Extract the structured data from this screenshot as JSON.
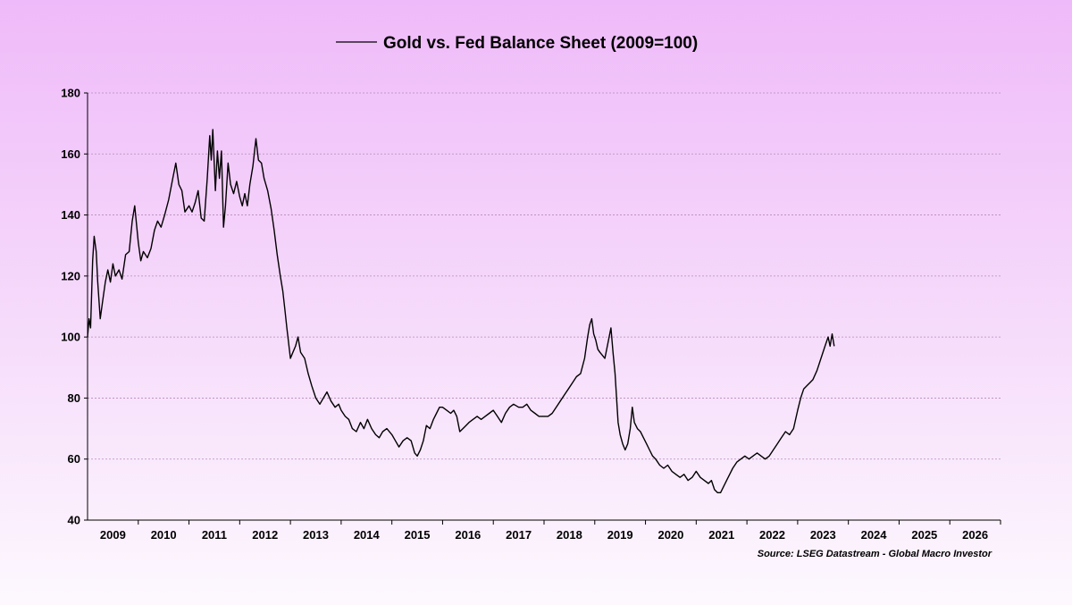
{
  "chart_data": {
    "type": "line",
    "title": "",
    "xlabel": "",
    "ylabel": "",
    "ylim": [
      40,
      180
    ],
    "yticks": [
      40,
      60,
      80,
      100,
      120,
      140,
      160,
      180
    ],
    "xlim": [
      2009.0,
      2027.0
    ],
    "xtick_labels": [
      "2009",
      "2010",
      "2011",
      "2012",
      "2013",
      "2014",
      "2015",
      "2016",
      "2017",
      "2018",
      "2019",
      "2020",
      "2021",
      "2022",
      "2023",
      "2024",
      "2025",
      "2026"
    ],
    "grid": "horizontal-dashed",
    "legend_position": "top-center",
    "line_color": "#000000",
    "source_note": "Source: LSEG Datastream - Global Macro Investor",
    "series": [
      {
        "name": "Gold vs. Fed Balance Sheet (2009=100)",
        "points": [
          [
            2009.0,
            100
          ],
          [
            2009.03,
            106
          ],
          [
            2009.06,
            103
          ],
          [
            2009.1,
            125
          ],
          [
            2009.13,
            133
          ],
          [
            2009.17,
            128
          ],
          [
            2009.2,
            118
          ],
          [
            2009.25,
            106
          ],
          [
            2009.3,
            112
          ],
          [
            2009.35,
            118
          ],
          [
            2009.4,
            122
          ],
          [
            2009.45,
            118
          ],
          [
            2009.5,
            124
          ],
          [
            2009.55,
            120
          ],
          [
            2009.62,
            122
          ],
          [
            2009.68,
            119
          ],
          [
            2009.75,
            127
          ],
          [
            2009.82,
            128
          ],
          [
            2009.88,
            138
          ],
          [
            2009.93,
            143
          ],
          [
            2010.0,
            131
          ],
          [
            2010.05,
            125
          ],
          [
            2010.1,
            128
          ],
          [
            2010.18,
            126
          ],
          [
            2010.25,
            129
          ],
          [
            2010.32,
            135
          ],
          [
            2010.38,
            138
          ],
          [
            2010.45,
            136
          ],
          [
            2010.52,
            140
          ],
          [
            2010.6,
            145
          ],
          [
            2010.68,
            152
          ],
          [
            2010.74,
            157
          ],
          [
            2010.8,
            150
          ],
          [
            2010.86,
            148
          ],
          [
            2010.92,
            141
          ],
          [
            2011.0,
            143
          ],
          [
            2011.06,
            141
          ],
          [
            2011.12,
            144
          ],
          [
            2011.18,
            148
          ],
          [
            2011.24,
            139
          ],
          [
            2011.3,
            138
          ],
          [
            2011.36,
            152
          ],
          [
            2011.41,
            166
          ],
          [
            2011.44,
            158
          ],
          [
            2011.47,
            168
          ],
          [
            2011.52,
            148
          ],
          [
            2011.56,
            161
          ],
          [
            2011.6,
            152
          ],
          [
            2011.64,
            161
          ],
          [
            2011.68,
            136
          ],
          [
            2011.72,
            143
          ],
          [
            2011.77,
            157
          ],
          [
            2011.82,
            150
          ],
          [
            2011.88,
            147
          ],
          [
            2011.94,
            151
          ],
          [
            2012.0,
            146
          ],
          [
            2012.05,
            143
          ],
          [
            2012.1,
            147
          ],
          [
            2012.15,
            143
          ],
          [
            2012.2,
            150
          ],
          [
            2012.26,
            156
          ],
          [
            2012.32,
            165
          ],
          [
            2012.37,
            158
          ],
          [
            2012.43,
            157
          ],
          [
            2012.48,
            152
          ],
          [
            2012.55,
            148
          ],
          [
            2012.62,
            142
          ],
          [
            2012.68,
            135
          ],
          [
            2012.74,
            127
          ],
          [
            2012.8,
            120
          ],
          [
            2012.85,
            115
          ],
          [
            2012.89,
            109
          ],
          [
            2012.93,
            103
          ],
          [
            2013.0,
            93
          ],
          [
            2013.05,
            95
          ],
          [
            2013.1,
            97
          ],
          [
            2013.15,
            100
          ],
          [
            2013.2,
            95
          ],
          [
            2013.28,
            93
          ],
          [
            2013.35,
            88
          ],
          [
            2013.42,
            84
          ],
          [
            2013.5,
            80
          ],
          [
            2013.58,
            78
          ],
          [
            2013.65,
            80
          ],
          [
            2013.72,
            82
          ],
          [
            2013.8,
            79
          ],
          [
            2013.88,
            77
          ],
          [
            2013.95,
            78
          ],
          [
            2014.0,
            76
          ],
          [
            2014.08,
            74
          ],
          [
            2014.15,
            73
          ],
          [
            2014.22,
            70
          ],
          [
            2014.3,
            69
          ],
          [
            2014.38,
            72
          ],
          [
            2014.45,
            70
          ],
          [
            2014.52,
            73
          ],
          [
            2014.6,
            70
          ],
          [
            2014.68,
            68
          ],
          [
            2014.75,
            67
          ],
          [
            2014.82,
            69
          ],
          [
            2014.9,
            70
          ],
          [
            2015.0,
            68
          ],
          [
            2015.07,
            66
          ],
          [
            2015.14,
            64
          ],
          [
            2015.22,
            66
          ],
          [
            2015.3,
            67
          ],
          [
            2015.38,
            66
          ],
          [
            2015.45,
            62
          ],
          [
            2015.5,
            61
          ],
          [
            2015.56,
            63
          ],
          [
            2015.62,
            66
          ],
          [
            2015.68,
            71
          ],
          [
            2015.75,
            70
          ],
          [
            2015.82,
            73
          ],
          [
            2015.88,
            75
          ],
          [
            2015.94,
            77
          ],
          [
            2016.0,
            77
          ],
          [
            2016.08,
            76
          ],
          [
            2016.16,
            75
          ],
          [
            2016.22,
            76
          ],
          [
            2016.28,
            74
          ],
          [
            2016.34,
            69
          ],
          [
            2016.4,
            70
          ],
          [
            2016.46,
            71
          ],
          [
            2016.52,
            72
          ],
          [
            2016.6,
            73
          ],
          [
            2016.68,
            74
          ],
          [
            2016.76,
            73
          ],
          [
            2016.84,
            74
          ],
          [
            2016.92,
            75
          ],
          [
            2017.0,
            76
          ],
          [
            2017.08,
            74
          ],
          [
            2017.16,
            72
          ],
          [
            2017.24,
            75
          ],
          [
            2017.32,
            77
          ],
          [
            2017.4,
            78
          ],
          [
            2017.5,
            77
          ],
          [
            2017.58,
            77
          ],
          [
            2017.66,
            78
          ],
          [
            2017.74,
            76
          ],
          [
            2017.82,
            75
          ],
          [
            2017.9,
            74
          ],
          [
            2018.0,
            74
          ],
          [
            2018.08,
            74
          ],
          [
            2018.16,
            75
          ],
          [
            2018.24,
            77
          ],
          [
            2018.32,
            79
          ],
          [
            2018.4,
            81
          ],
          [
            2018.48,
            83
          ],
          [
            2018.56,
            85
          ],
          [
            2018.64,
            87
          ],
          [
            2018.72,
            88
          ],
          [
            2018.8,
            93
          ],
          [
            2018.86,
            100
          ],
          [
            2018.9,
            104
          ],
          [
            2018.94,
            106
          ],
          [
            2018.98,
            101
          ],
          [
            2019.02,
            99
          ],
          [
            2019.06,
            96
          ],
          [
            2019.1,
            95
          ],
          [
            2019.15,
            94
          ],
          [
            2019.2,
            93
          ],
          [
            2019.26,
            98
          ],
          [
            2019.32,
            103
          ],
          [
            2019.36,
            95
          ],
          [
            2019.4,
            88
          ],
          [
            2019.43,
            80
          ],
          [
            2019.46,
            72
          ],
          [
            2019.5,
            68
          ],
          [
            2019.55,
            65
          ],
          [
            2019.6,
            63
          ],
          [
            2019.65,
            65
          ],
          [
            2019.7,
            70
          ],
          [
            2019.74,
            77
          ],
          [
            2019.78,
            72
          ],
          [
            2019.84,
            70
          ],
          [
            2019.9,
            69
          ],
          [
            2019.96,
            67
          ],
          [
            2020.02,
            65
          ],
          [
            2020.08,
            63
          ],
          [
            2020.14,
            61
          ],
          [
            2020.2,
            60
          ],
          [
            2020.28,
            58
          ],
          [
            2020.36,
            57
          ],
          [
            2020.44,
            58
          ],
          [
            2020.52,
            56
          ],
          [
            2020.6,
            55
          ],
          [
            2020.68,
            54
          ],
          [
            2020.76,
            55
          ],
          [
            2020.84,
            53
          ],
          [
            2020.92,
            54
          ],
          [
            2021.0,
            56
          ],
          [
            2021.08,
            54
          ],
          [
            2021.16,
            53
          ],
          [
            2021.24,
            52
          ],
          [
            2021.3,
            53
          ],
          [
            2021.36,
            50
          ],
          [
            2021.42,
            49
          ],
          [
            2021.48,
            49
          ],
          [
            2021.54,
            51
          ],
          [
            2021.6,
            53
          ],
          [
            2021.66,
            55
          ],
          [
            2021.72,
            57
          ],
          [
            2021.8,
            59
          ],
          [
            2021.88,
            60
          ],
          [
            2021.96,
            61
          ],
          [
            2022.04,
            60
          ],
          [
            2022.12,
            61
          ],
          [
            2022.2,
            62
          ],
          [
            2022.28,
            61
          ],
          [
            2022.36,
            60
          ],
          [
            2022.44,
            61
          ],
          [
            2022.52,
            63
          ],
          [
            2022.6,
            65
          ],
          [
            2022.68,
            67
          ],
          [
            2022.76,
            69
          ],
          [
            2022.84,
            68
          ],
          [
            2022.92,
            70
          ],
          [
            2023.0,
            76
          ],
          [
            2023.06,
            80
          ],
          [
            2023.12,
            83
          ],
          [
            2023.18,
            84
          ],
          [
            2023.24,
            85
          ],
          [
            2023.3,
            86
          ],
          [
            2023.38,
            89
          ],
          [
            2023.46,
            93
          ],
          [
            2023.54,
            97
          ],
          [
            2023.6,
            100
          ],
          [
            2023.64,
            97
          ],
          [
            2023.68,
            101
          ],
          [
            2023.72,
            97
          ]
        ]
      }
    ]
  }
}
